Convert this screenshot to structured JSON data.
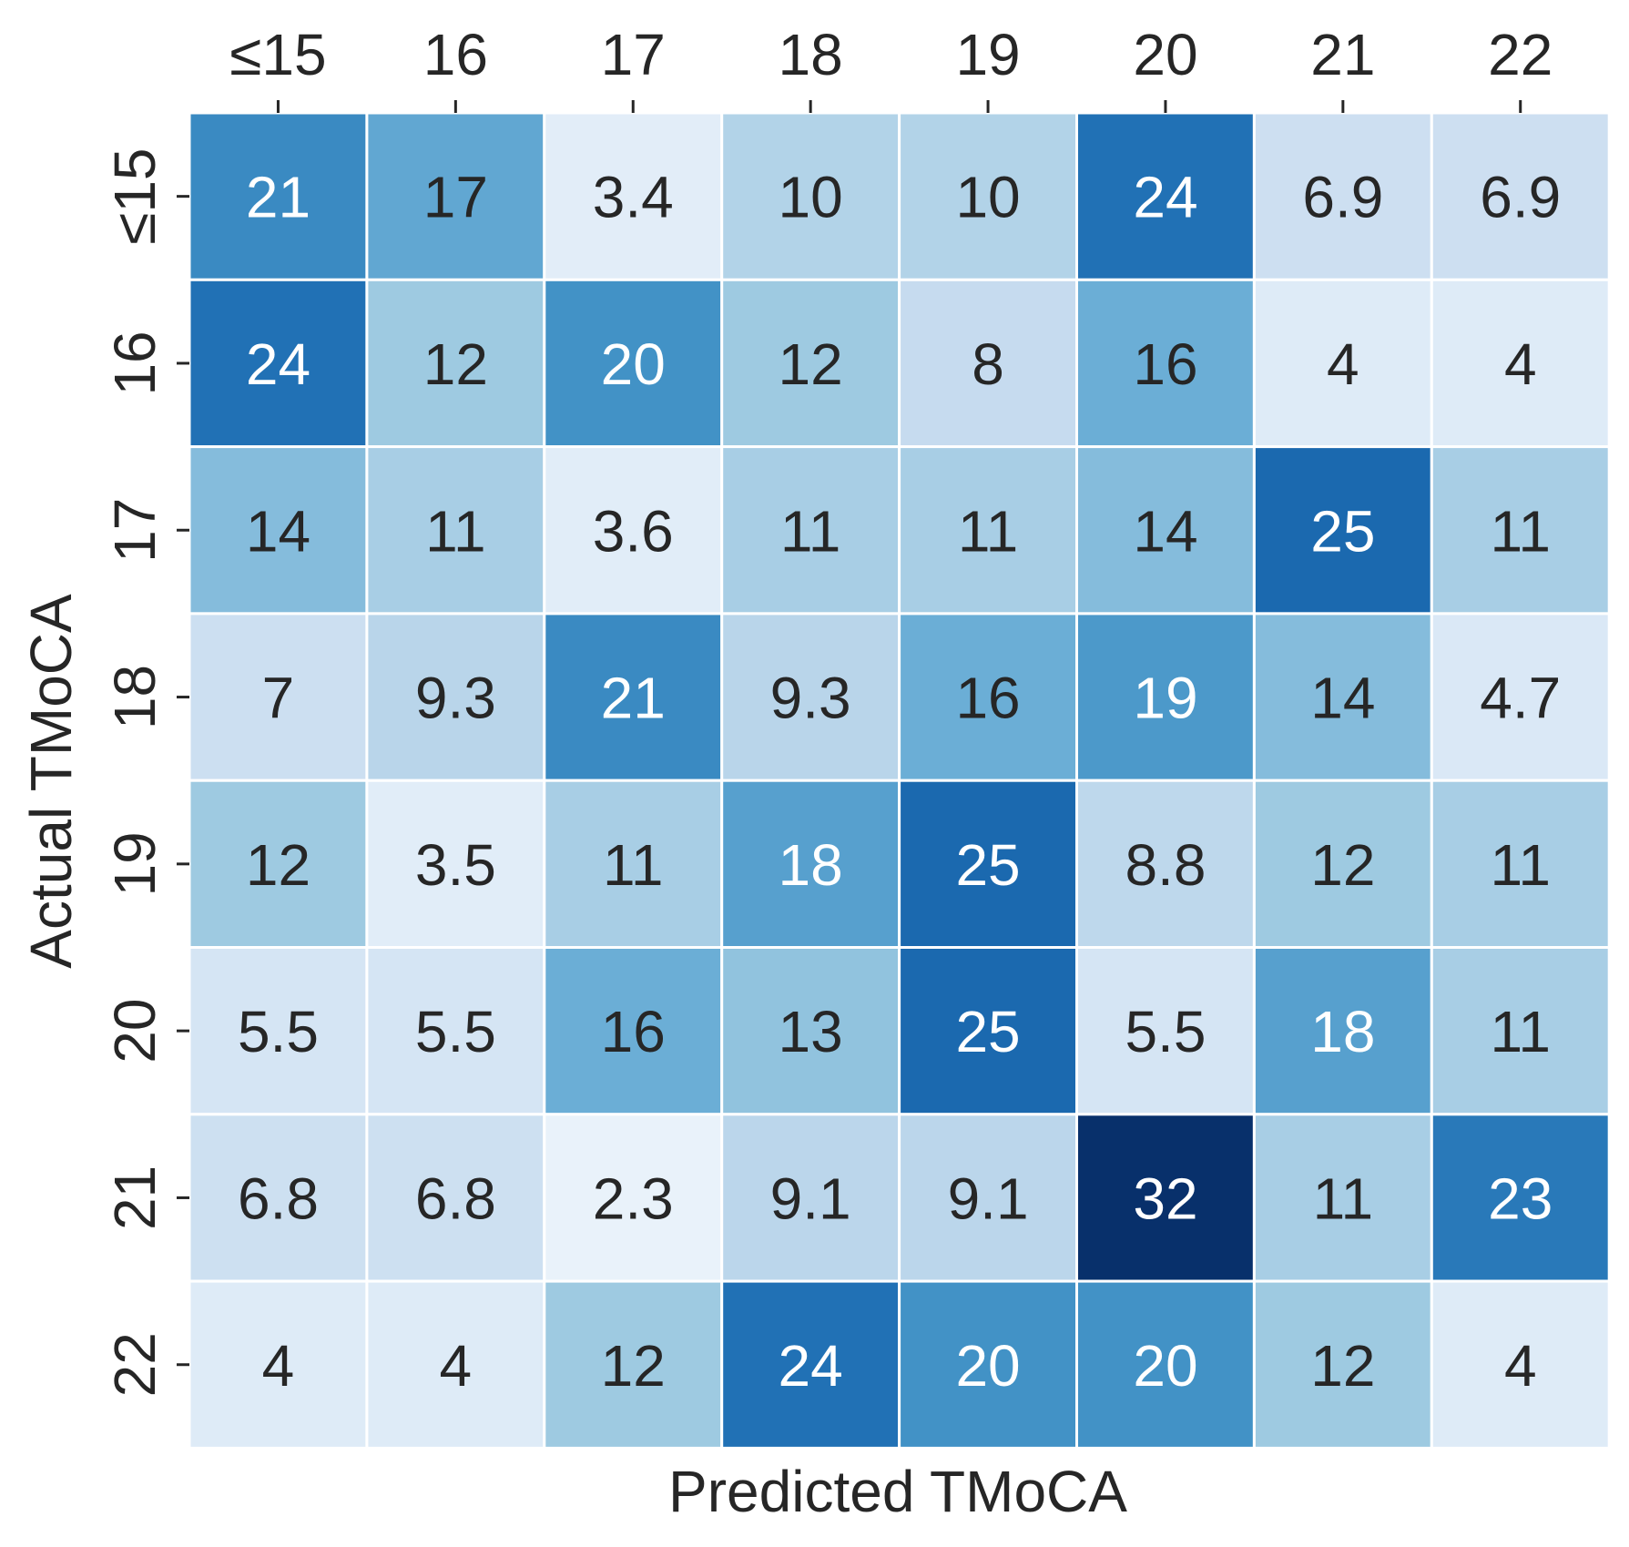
{
  "chart_data": {
    "type": "heatmap",
    "title": "",
    "xlabel": "Predicted TMoCA",
    "ylabel": "Actual TMoCA",
    "x_categories": [
      "≤15",
      "16",
      "17",
      "18",
      "19",
      "20",
      "21",
      "22"
    ],
    "y_categories": [
      "≤15",
      "16",
      "17",
      "18",
      "19",
      "20",
      "21",
      "22"
    ],
    "x_tick_position": "top",
    "colormap": "Blues",
    "value_range": [
      0,
      32
    ],
    "colorbar": false,
    "grid": false,
    "cell_separator_color": "#ffffff",
    "values": [
      [
        21,
        17,
        3.4,
        10,
        10,
        24,
        6.9,
        6.9
      ],
      [
        24,
        12,
        20,
        12,
        8,
        16,
        4,
        4
      ],
      [
        14,
        11,
        3.6,
        11,
        11,
        14,
        25,
        11
      ],
      [
        7,
        9.3,
        21,
        9.3,
        16,
        19,
        14,
        4.7
      ],
      [
        12,
        3.5,
        11,
        18,
        25,
        8.8,
        12,
        11
      ],
      [
        5.5,
        5.5,
        16,
        13,
        25,
        5.5,
        18,
        11
      ],
      [
        6.8,
        6.8,
        2.3,
        9.1,
        9.1,
        32,
        11,
        23
      ],
      [
        4,
        4,
        12,
        24,
        20,
        20,
        12,
        4
      ]
    ]
  }
}
